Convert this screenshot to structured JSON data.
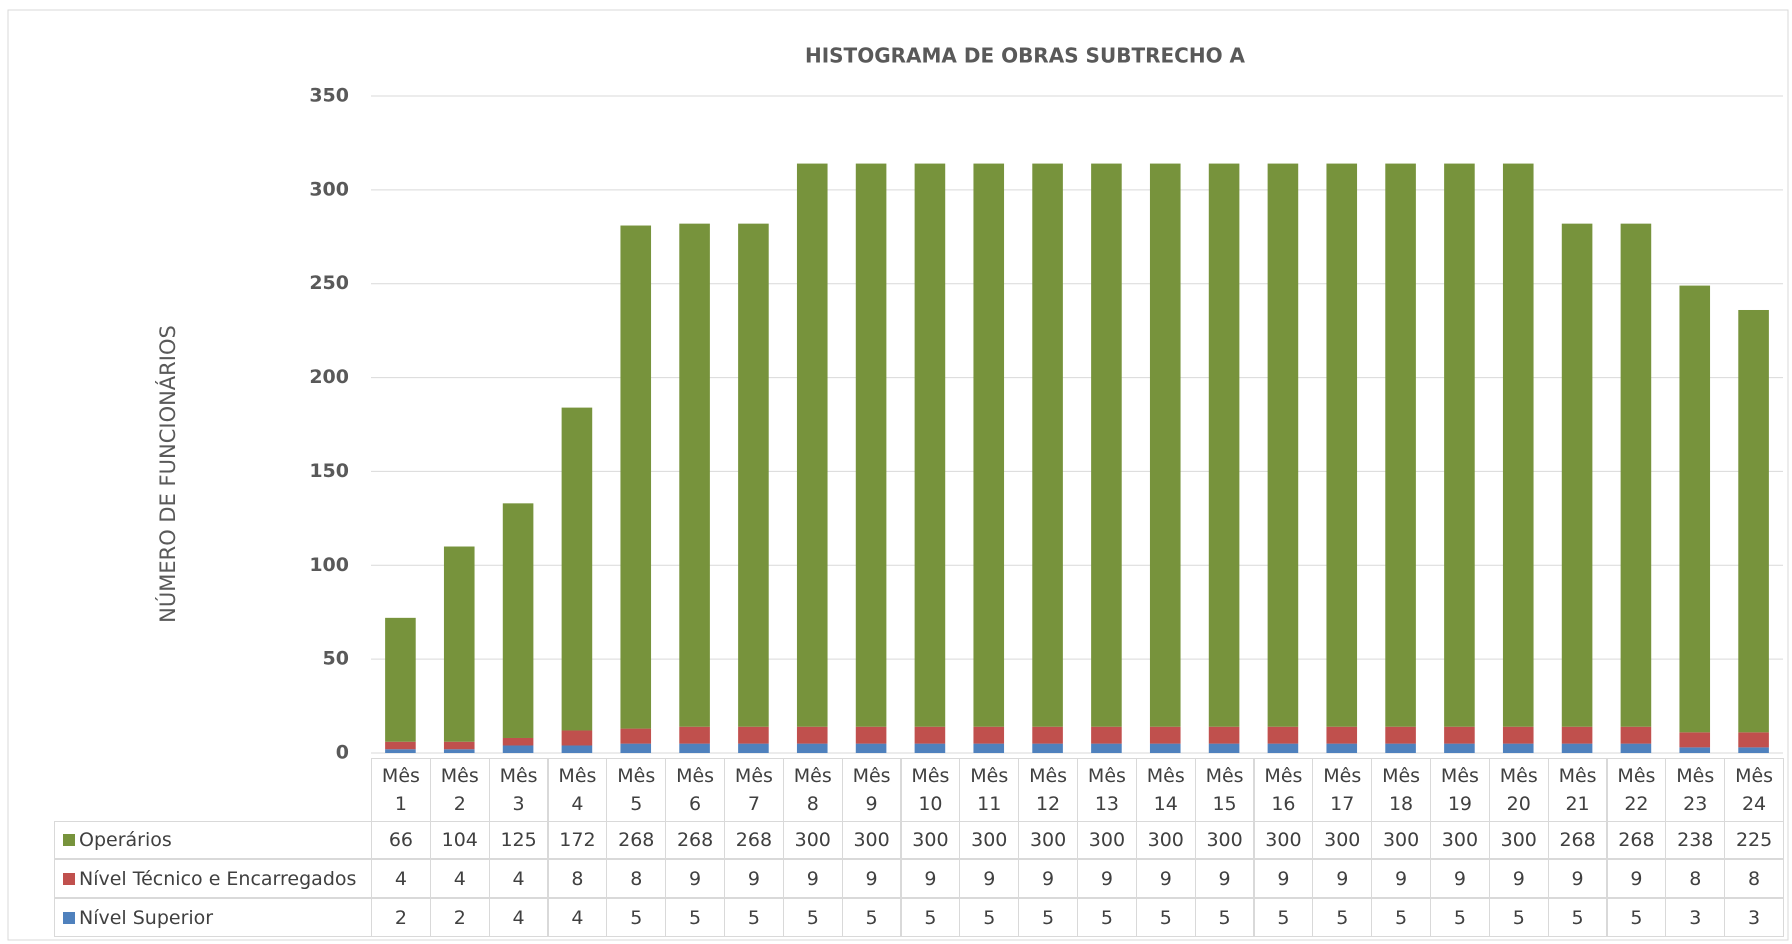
{
  "chart_data": {
    "type": "stacked_bar",
    "title": "HISTOGRAMA DE OBRAS SUBTRECHO A",
    "y_label": "NÚMERO DE FUNCIONÁRIOS",
    "categories": [
      "Mês 1",
      "Mês 2",
      "Mês 3",
      "Mês 4",
      "Mês 5",
      "Mês 6",
      "Mês 7",
      "Mês 8",
      "Mês 9",
      "Mês 10",
      "Mês 11",
      "Mês 12",
      "Mês 13",
      "Mês 14",
      "Mês 15",
      "Mês 16",
      "Mês 17",
      "Mês 18",
      "Mês 19",
      "Mês 20",
      "Mês 21",
      "Mês 22",
      "Mês 23",
      "Mês 24"
    ],
    "series": [
      {
        "name": "Nível Superior",
        "color": "#4f81bd",
        "values": [
          2,
          2,
          4,
          4,
          5,
          5,
          5,
          5,
          5,
          5,
          5,
          5,
          5,
          5,
          5,
          5,
          5,
          5,
          5,
          5,
          5,
          5,
          3,
          3
        ]
      },
      {
        "name": "Nível Técnico e Encarregados",
        "color": "#c0504d",
        "values": [
          4,
          4,
          4,
          8,
          8,
          9,
          9,
          9,
          9,
          9,
          9,
          9,
          9,
          9,
          9,
          9,
          9,
          9,
          9,
          9,
          9,
          9,
          8,
          8
        ]
      },
      {
        "name": "Operários",
        "color": "#77933c",
        "values": [
          66,
          104,
          125,
          172,
          268,
          268,
          268,
          300,
          300,
          300,
          300,
          300,
          300,
          300,
          300,
          300,
          300,
          300,
          300,
          300,
          268,
          268,
          238,
          225
        ]
      }
    ],
    "ylim": [
      0,
      350
    ],
    "yticks": [
      0,
      50,
      100,
      150,
      200,
      250,
      300,
      350
    ],
    "grid": true
  }
}
